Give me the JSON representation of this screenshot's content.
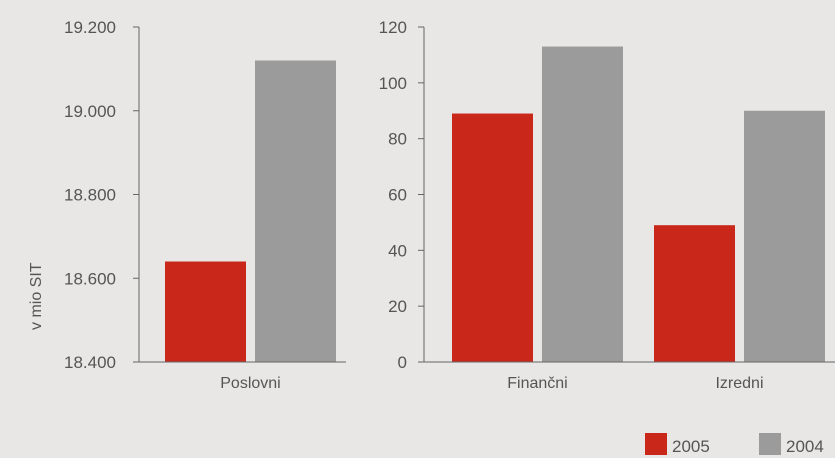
{
  "ylabel": "v mio SIT",
  "colors": {
    "2005": "#c8271a",
    "2004": "#9b9b9b",
    "axis": "#666666",
    "background": "#e8e7e6"
  },
  "chart_data": [
    {
      "type": "bar",
      "categories": [
        "Poslovni"
      ],
      "series": [
        {
          "name": "2005",
          "values": [
            18640
          ]
        },
        {
          "name": "2004",
          "values": [
            19120
          ]
        }
      ],
      "ylim": [
        18400,
        19200
      ],
      "yticks": [
        18400,
        18600,
        18800,
        19000,
        19200
      ],
      "ytick_labels": [
        "18.400",
        "18.600",
        "18.800",
        "19.000",
        "19.200"
      ],
      "ylabel": "v mio SIT"
    },
    {
      "type": "bar",
      "categories": [
        "Finančni",
        "Izredni"
      ],
      "series": [
        {
          "name": "2005",
          "values": [
            89,
            49
          ]
        },
        {
          "name": "2004",
          "values": [
            113,
            90
          ]
        }
      ],
      "ylim": [
        0,
        120
      ],
      "yticks": [
        0,
        20,
        40,
        60,
        80,
        100,
        120
      ],
      "ytick_labels": [
        "0",
        "20",
        "40",
        "60",
        "80",
        "100",
        "120"
      ]
    }
  ],
  "legend": {
    "position": "bottom-right",
    "items": [
      "2005",
      "2004"
    ]
  }
}
